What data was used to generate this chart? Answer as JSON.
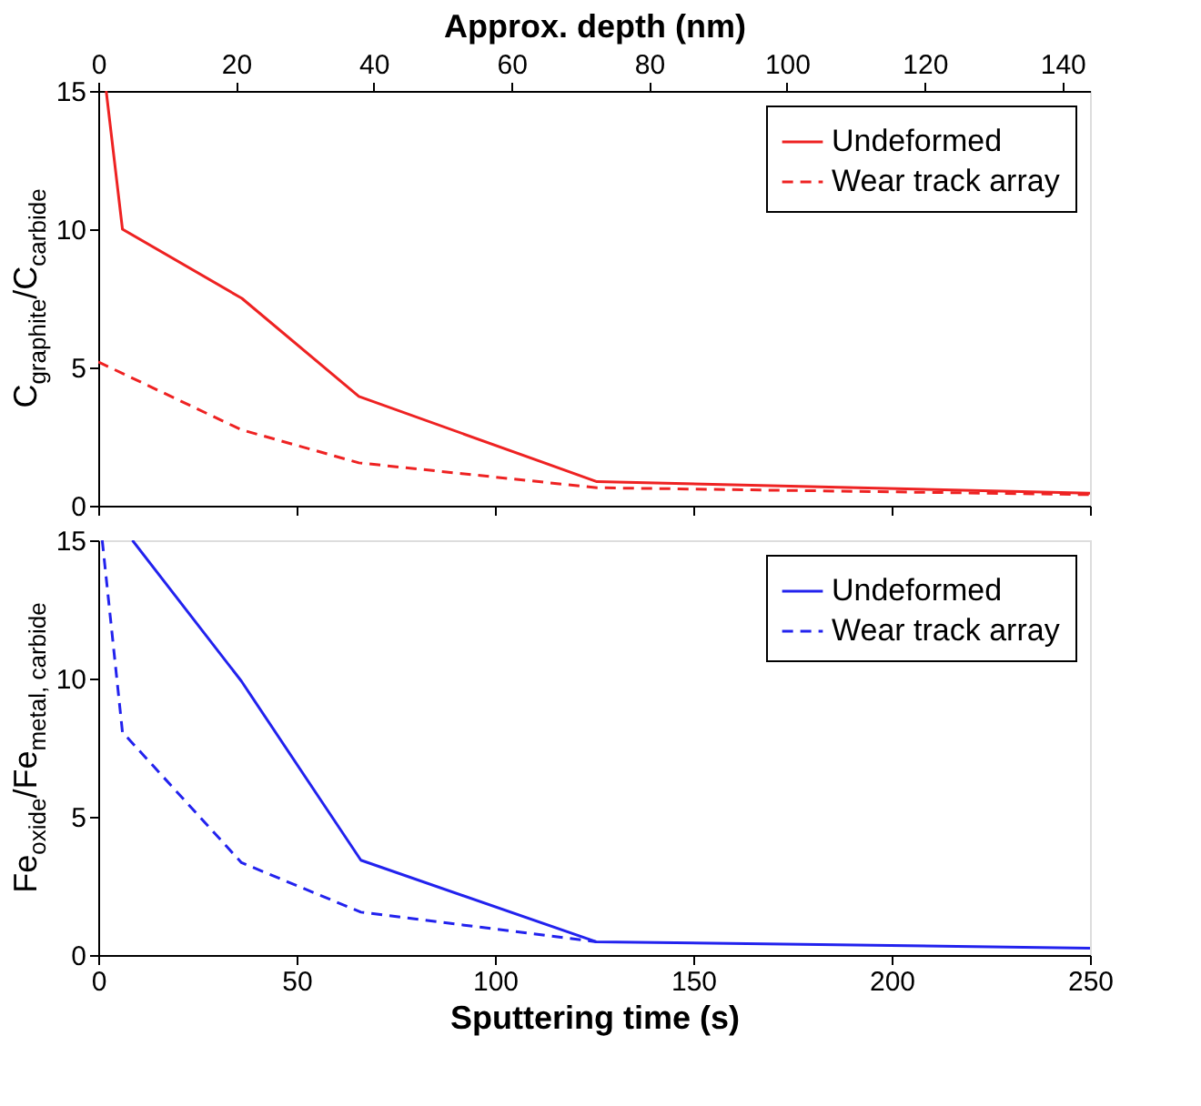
{
  "chart_data": [
    {
      "type": "line",
      "x2label": "Approx. depth (nm)",
      "x2lim": [
        0,
        144
      ],
      "x2ticks": [
        0,
        20,
        40,
        60,
        80,
        100,
        120,
        140
      ],
      "xlim": [
        0,
        250
      ],
      "xticks": [
        0,
        50,
        100,
        150,
        200,
        250
      ],
      "tick_labels": "y",
      "ylabel": "C$_{graphite}$/C$_{carbide}$",
      "ylim": [
        0,
        15
      ],
      "yticks": [
        0,
        5,
        10,
        15
      ],
      "legend": "top right",
      "series": [
        {
          "name": "Undeformed",
          "color": "#ee2222",
          "line_style": "solid",
          "x": [
            2,
            6.1,
            36.2,
            65.7,
            125.7,
            250
          ],
          "values": [
            15,
            10,
            7.5,
            3.95,
            0.87,
            0.45
          ]
        },
        {
          "name": "Wear track array",
          "color": "#ee2222",
          "line_style": "dashed",
          "x": [
            0,
            36,
            65.7,
            125.7,
            250
          ],
          "values": [
            5.2,
            2.75,
            1.55,
            0.65,
            0.4
          ]
        }
      ]
    },
    {
      "type": "line",
      "xlabel": "Sputtering time (s)",
      "xlim": [
        0,
        250
      ],
      "xticks": [
        0,
        50,
        100,
        150,
        200,
        250
      ],
      "ylabel": "Fe$_{oxide}$/Fe$_{metal, carbide}$",
      "ylim": [
        0,
        15
      ],
      "yticks": [
        0,
        5,
        10,
        15
      ],
      "legend": "top right",
      "series": [
        {
          "name": "Undeformed",
          "color": "#2222ee",
          "line_style": "solid",
          "x": [
            8.6,
            36.1,
            66.2,
            125.5,
            250
          ],
          "values": [
            15,
            9.9,
            3.43,
            0.48,
            0.25
          ]
        },
        {
          "name": "Wear track array",
          "color": "#2222ee",
          "line_style": "dashed",
          "x": [
            1,
            6.1,
            36.1,
            66.2,
            125.5
          ],
          "values": [
            15,
            8.06,
            3.34,
            1.55,
            0.48
          ]
        }
      ]
    }
  ]
}
